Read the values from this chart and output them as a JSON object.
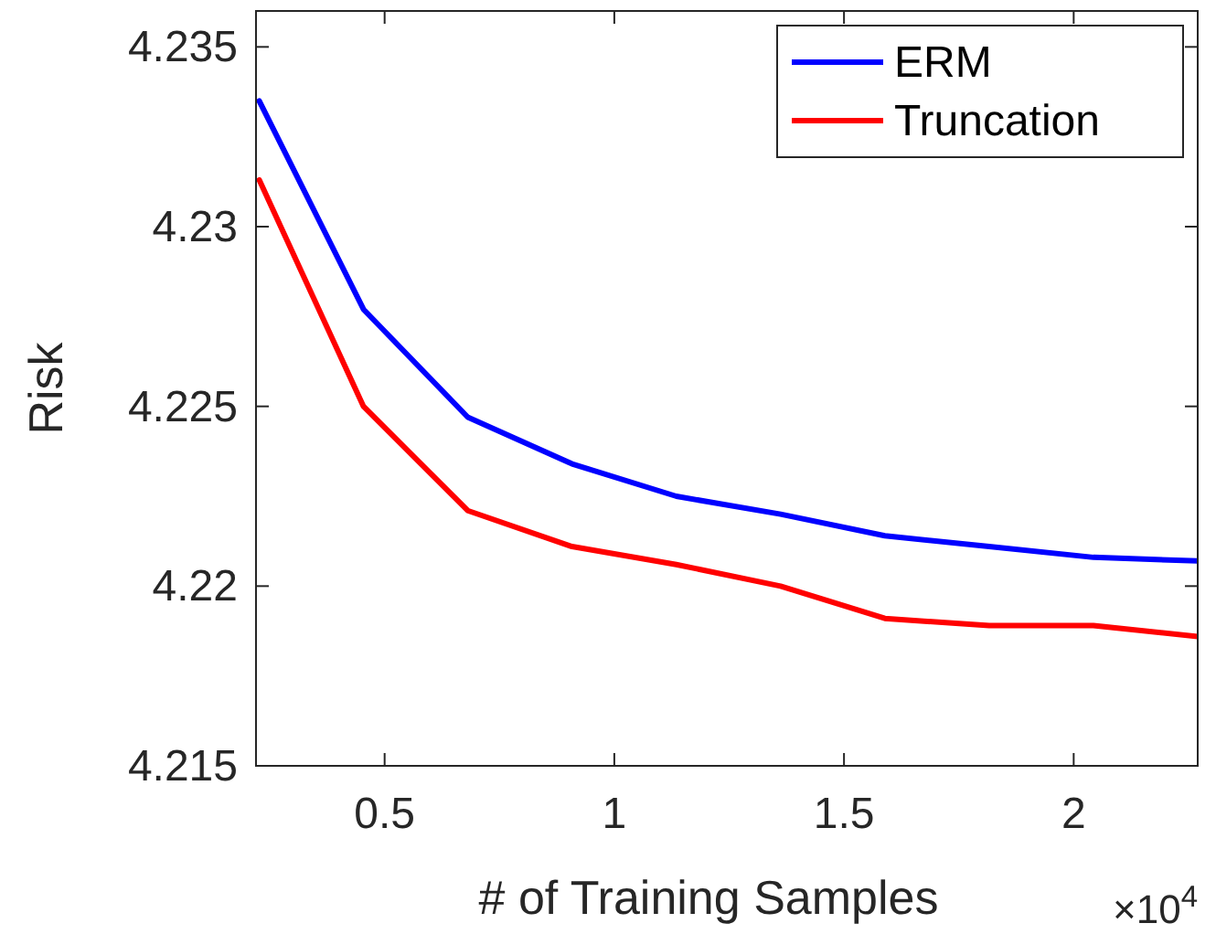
{
  "chart_data": {
    "type": "line",
    "xlabel": "# of Training Samples",
    "ylabel": "Risk",
    "annotations": [
      "×10$^{4}$"
    ],
    "x": [
      0.227,
      0.454,
      0.681,
      0.908,
      1.135,
      1.362,
      1.589,
      1.816,
      2.043,
      2.27
    ],
    "series": [
      {
        "name": "ERM",
        "color": "#0000ff",
        "values": [
          4.2335,
          4.2277,
          4.2247,
          4.2234,
          4.2225,
          4.222,
          4.2214,
          4.2211,
          4.2208,
          4.2207
        ]
      },
      {
        "name": "Truncation",
        "color": "#ff0000",
        "values": [
          4.2313,
          4.225,
          4.2221,
          4.2211,
          4.2206,
          4.22,
          4.2191,
          4.2189,
          4.2189,
          4.2186
        ]
      }
    ],
    "xlim": [
      0.22,
      2.27
    ],
    "xticks": [
      0.5,
      1,
      1.5,
      2
    ],
    "ylim": [
      4.215,
      4.236
    ],
    "yticks": [
      4.215,
      4.22,
      4.225,
      4.23,
      4.235
    ],
    "grid": false,
    "legend": "top right",
    "marker": "none",
    "line_style": "solid"
  }
}
